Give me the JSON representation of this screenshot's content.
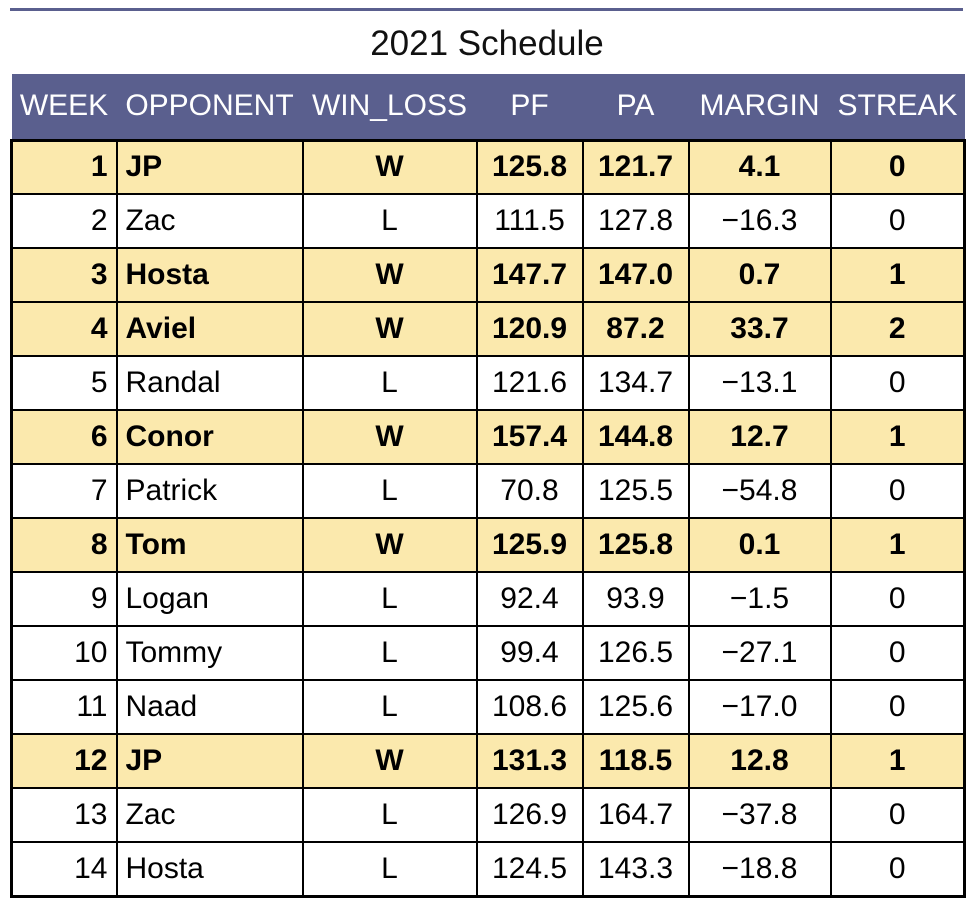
{
  "title": "2021 Schedule",
  "colors": {
    "header_bg": "#5a5f8e",
    "header_text": "#ffffff",
    "win_row_bg": "#fbe9ad",
    "loss_row_bg": "#ffffff"
  },
  "chart_data": {
    "type": "table",
    "title": "2021 Schedule",
    "columns": [
      "WEEK",
      "OPPONENT",
      "WIN_LOSS",
      "PF",
      "PA",
      "MARGIN",
      "STREAK"
    ],
    "rows": [
      [
        "1",
        "JP",
        "W",
        "125.8",
        "121.7",
        "4.1",
        "0"
      ],
      [
        "2",
        "Zac",
        "L",
        "111.5",
        "127.8",
        "−16.3",
        "0"
      ],
      [
        "3",
        "Hosta",
        "W",
        "147.7",
        "147.0",
        "0.7",
        "1"
      ],
      [
        "4",
        "Aviel",
        "W",
        "120.9",
        "87.2",
        "33.7",
        "2"
      ],
      [
        "5",
        "Randal",
        "L",
        "121.6",
        "134.7",
        "−13.1",
        "0"
      ],
      [
        "6",
        "Conor",
        "W",
        "157.4",
        "144.8",
        "12.7",
        "1"
      ],
      [
        "7",
        "Patrick",
        "L",
        "70.8",
        "125.5",
        "−54.8",
        "0"
      ],
      [
        "8",
        "Tom",
        "W",
        "125.9",
        "125.8",
        "0.1",
        "1"
      ],
      [
        "9",
        "Logan",
        "L",
        "92.4",
        "93.9",
        "−1.5",
        "0"
      ],
      [
        "10",
        "Tommy",
        "L",
        "99.4",
        "126.5",
        "−27.1",
        "0"
      ],
      [
        "11",
        "Naad",
        "L",
        "108.6",
        "125.6",
        "−17.0",
        "0"
      ],
      [
        "12",
        "JP",
        "W",
        "131.3",
        "118.5",
        "12.8",
        "1"
      ],
      [
        "13",
        "Zac",
        "L",
        "126.9",
        "164.7",
        "−37.8",
        "0"
      ],
      [
        "14",
        "Hosta",
        "L",
        "124.5",
        "143.3",
        "−18.8",
        "0"
      ]
    ]
  }
}
